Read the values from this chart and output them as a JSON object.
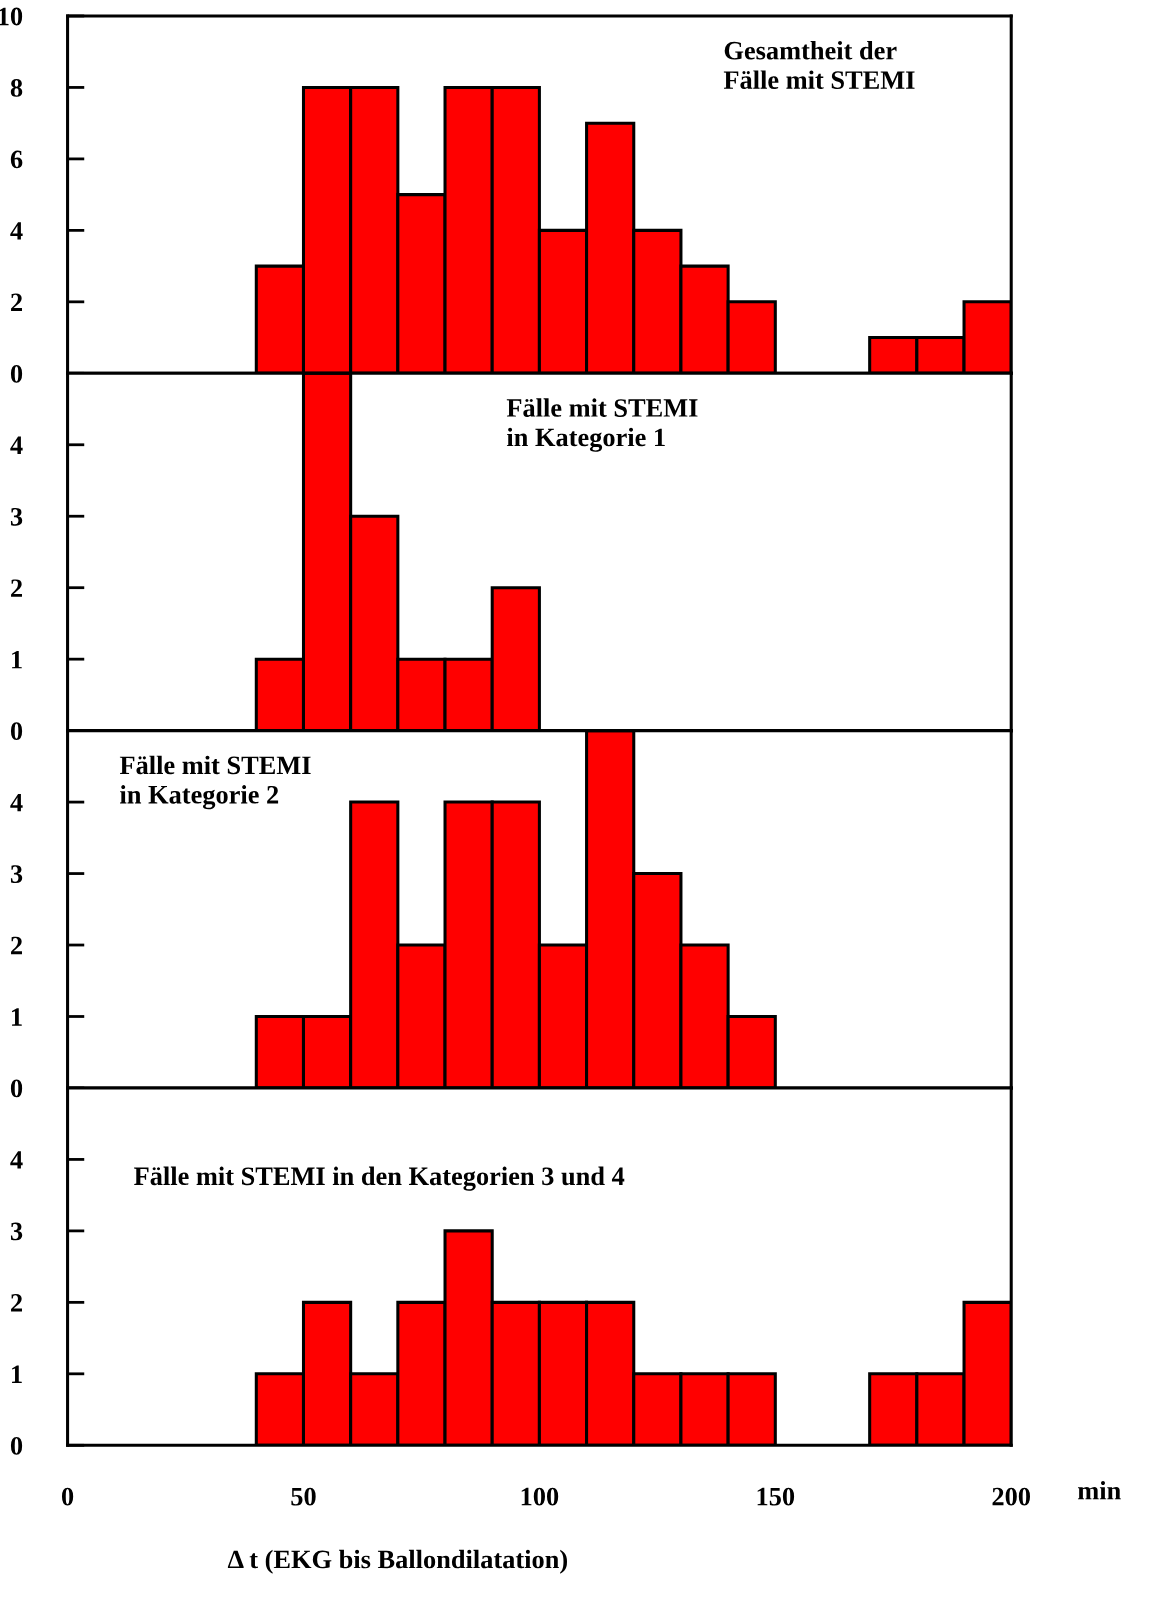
{
  "chart_data": [
    {
      "type": "histogram",
      "bins": [
        40,
        50,
        60,
        70,
        80,
        90,
        100,
        110,
        120,
        130,
        140,
        150,
        160,
        170,
        180,
        190,
        200
      ],
      "values": [
        3,
        8,
        8,
        5,
        8,
        8,
        4,
        7,
        4,
        3,
        2,
        0,
        0,
        1,
        1,
        2
      ],
      "color": "#ff0000",
      "xlim": [
        0,
        200
      ],
      "ylim": [
        0,
        10
      ],
      "yticks": [
        0,
        2,
        4,
        6,
        8,
        10
      ],
      "tick_labels": "y",
      "grid": false,
      "annotations": [
        "Gesamtheit der\nFälle mit STEMI"
      ]
    },
    {
      "type": "histogram",
      "bins": [
        40,
        50,
        60,
        70,
        80,
        90,
        100
      ],
      "values": [
        1,
        5,
        3,
        1,
        1,
        2
      ],
      "color": "#ff0000",
      "xlim": [
        0,
        200
      ],
      "ylim": [
        0,
        5
      ],
      "yticks": [
        0,
        1,
        2,
        3,
        4
      ],
      "tick_labels": "y",
      "grid": false,
      "annotations": [
        "Fälle mit STEMI\nin Kategorie 1"
      ]
    },
    {
      "type": "histogram",
      "bins": [
        40,
        50,
        60,
        70,
        80,
        90,
        100,
        110,
        120,
        130,
        140,
        150
      ],
      "values": [
        1,
        1,
        4,
        2,
        4,
        4,
        2,
        5,
        3,
        2,
        1
      ],
      "color": "#ff0000",
      "xlim": [
        0,
        200
      ],
      "ylim": [
        0,
        5
      ],
      "yticks": [
        0,
        1,
        2,
        3,
        4
      ],
      "tick_labels": "y",
      "grid": false,
      "annotations": [
        "Fälle mit STEMI\nin Kategorie 2"
      ]
    },
    {
      "type": "histogram",
      "bins": [
        40,
        50,
        60,
        70,
        80,
        90,
        100,
        110,
        120,
        130,
        140,
        150,
        160,
        170,
        180,
        190,
        200
      ],
      "values": [
        1,
        2,
        1,
        2,
        3,
        2,
        2,
        2,
        1,
        1,
        1,
        0,
        0,
        1,
        1,
        2
      ],
      "color": "#ff0000",
      "xlim": [
        0,
        200
      ],
      "ylim": [
        0,
        5
      ],
      "yticks": [
        0,
        1,
        2,
        3,
        4
      ],
      "xticks": [
        0,
        50,
        100,
        150,
        200
      ],
      "xlabel": "Δ t (EKG bis Ballondilatation)",
      "grid": false,
      "annotations": [
        "Fälle mit STEMI in den Kategorien 3 und 4",
        "min"
      ]
    }
  ]
}
